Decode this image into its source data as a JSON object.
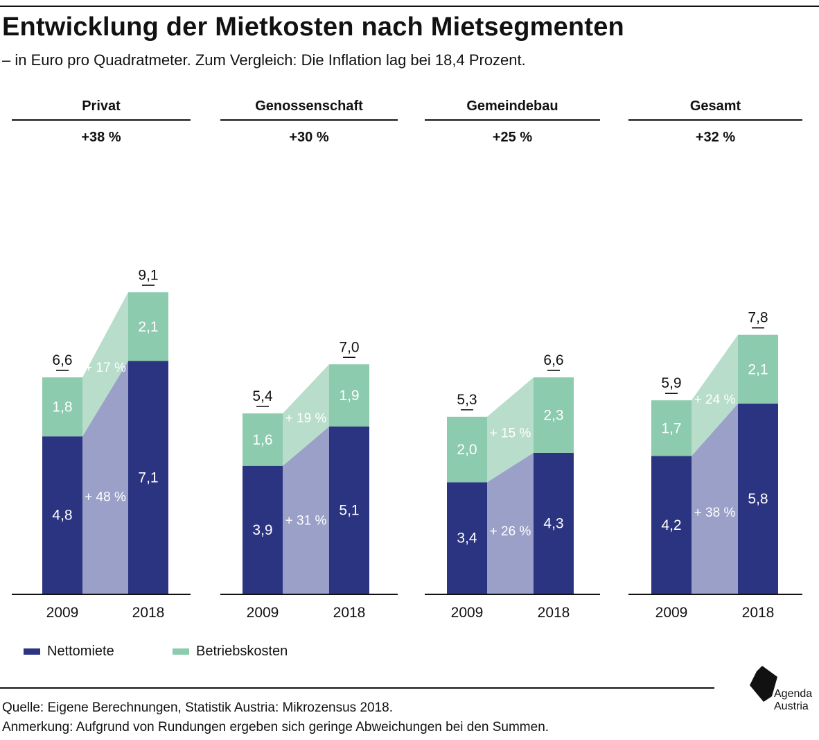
{
  "header": {
    "title": "Entwicklung der Mietkosten nach Mietsegmenten",
    "subtitle": "– in Euro pro Quadratmeter. Zum Vergleich: Die Inflation lag bei 18,4 Prozent."
  },
  "colors": {
    "nettomiete": "#2b3480",
    "betriebskosten": "#8ccbad",
    "nettomiete_band": "#9aa0c8",
    "betriebskosten_band": "#b8ddcb",
    "text_dark": "#111111",
    "text_light": "#ffffff"
  },
  "chart_data": {
    "type": "bar",
    "stacked": true,
    "ylim": [
      0,
      9.1
    ],
    "panels": [
      {
        "title": "Privat",
        "change": "+38 %",
        "categories": [
          "2009",
          "2018"
        ],
        "series": [
          {
            "name": "Nettomiete",
            "values": [
              4.8,
              7.1
            ],
            "labels": [
              "4,8",
              "7,1"
            ],
            "change": "+ 48 %"
          },
          {
            "name": "Betriebskosten",
            "values": [
              1.8,
              2.1
            ],
            "labels": [
              "1,8",
              "2,1"
            ],
            "change": "+ 17 %"
          }
        ],
        "totals": [
          6.6,
          9.1
        ],
        "total_labels": [
          "6,6",
          "9,1"
        ]
      },
      {
        "title": "Genossenschaft",
        "change": "+30 %",
        "categories": [
          "2009",
          "2018"
        ],
        "series": [
          {
            "name": "Nettomiete",
            "values": [
              3.9,
              5.1
            ],
            "labels": [
              "3,9",
              "5,1"
            ],
            "change": "+ 31 %"
          },
          {
            "name": "Betriebskosten",
            "values": [
              1.6,
              1.9
            ],
            "labels": [
              "1,6",
              "1,9"
            ],
            "change": "+ 19 %"
          }
        ],
        "totals": [
          5.4,
          7.0
        ],
        "total_labels": [
          "5,4",
          "7,0"
        ]
      },
      {
        "title": "Gemeindebau",
        "change": "+25 %",
        "categories": [
          "2009",
          "2018"
        ],
        "series": [
          {
            "name": "Nettomiete",
            "values": [
              3.4,
              4.3
            ],
            "labels": [
              "3,4",
              "4,3"
            ],
            "change": "+ 26 %"
          },
          {
            "name": "Betriebskosten",
            "values": [
              2.0,
              2.3
            ],
            "labels": [
              "2,0",
              "2,3"
            ],
            "change": "+ 15 %"
          }
        ],
        "totals": [
          5.3,
          6.6
        ],
        "total_labels": [
          "5,3",
          "6,6"
        ]
      },
      {
        "title": "Gesamt",
        "change": "+32 %",
        "categories": [
          "2009",
          "2018"
        ],
        "series": [
          {
            "name": "Nettomiete",
            "values": [
              4.2,
              5.8
            ],
            "labels": [
              "4,2",
              "5,8"
            ],
            "change": "+ 38 %"
          },
          {
            "name": "Betriebskosten",
            "values": [
              1.7,
              2.1
            ],
            "labels": [
              "1,7",
              "2,1"
            ],
            "change": "+ 24 %"
          }
        ],
        "totals": [
          5.9,
          7.8
        ],
        "total_labels": [
          "5,9",
          "7,8"
        ]
      }
    ],
    "legend": [
      "Nettomiete",
      "Betriebskosten"
    ],
    "legend_position": "bottom-left",
    "grid": false
  },
  "footer": {
    "source": "Quelle: Eigene Berechnungen, Statistik Austria: Mikrozensus 2018.",
    "note": "Anmerkung: Aufgrund von Rundungen ergeben sich geringe Abweichungen bei den Summen.",
    "logo_line1": "Agenda",
    "logo_line2": "Austria"
  }
}
